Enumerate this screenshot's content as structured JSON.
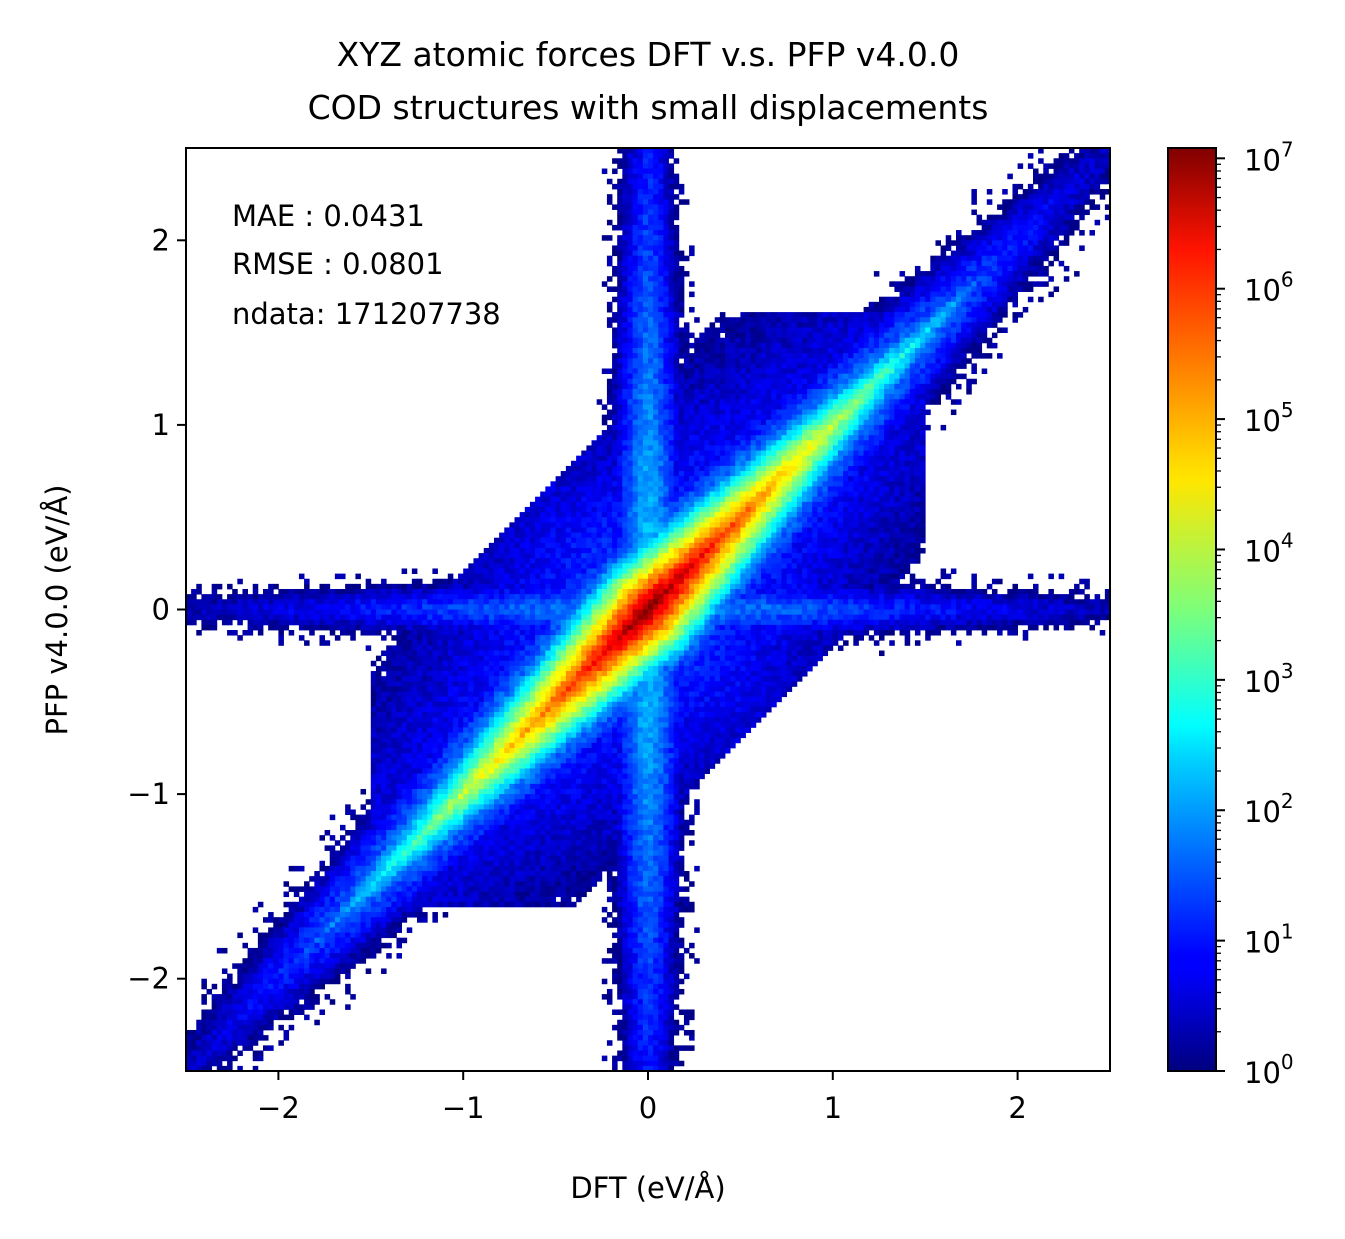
{
  "chart_data": {
    "type": "heatmap",
    "title_line1": "XYZ atomic forces DFT v.s. PFP v4.0.0",
    "title_line2": "COD structures with small displacements",
    "xlabel": "DFT (eV/Å)",
    "ylabel": "PFP v4.0.0 (eV/Å)",
    "xlim": [
      -2.5,
      2.5
    ],
    "ylim": [
      -2.5,
      2.5
    ],
    "xticks": [
      -2,
      -1,
      0,
      1,
      2
    ],
    "yticks": [
      -2,
      -1,
      0,
      1,
      2
    ],
    "xtick_labels": [
      "−2",
      "−1",
      "0",
      "1",
      "2"
    ],
    "ytick_labels": [
      "−2",
      "−1",
      "0",
      "1",
      "2"
    ],
    "colormap": "jet",
    "color_scale": "log",
    "colorbar_range": [
      1,
      12000000
    ],
    "colorbar_ticks": [
      {
        "base": "10",
        "exp": "0",
        "value": 1
      },
      {
        "base": "10",
        "exp": "1",
        "value": 10
      },
      {
        "base": "10",
        "exp": "2",
        "value": 100
      },
      {
        "base": "10",
        "exp": "3",
        "value": 1000
      },
      {
        "base": "10",
        "exp": "4",
        "value": 10000
      },
      {
        "base": "10",
        "exp": "5",
        "value": 100000
      },
      {
        "base": "10",
        "exp": "6",
        "value": 1000000
      },
      {
        "base": "10",
        "exp": "7",
        "value": 10000000
      }
    ],
    "annotations": {
      "mae": "MAE : 0.0431",
      "rmse": "RMSE : 0.0801",
      "ndata": "ndata: 171207738"
    },
    "stats": {
      "mae": 0.0431,
      "rmse": 0.0801,
      "ndata": 171207738
    },
    "density_model": {
      "peak_count": 12000000,
      "diag_core_width": 0.055,
      "diag_tail_width": 0.22,
      "vertical_arm_width": 0.1,
      "horizontal_arm_width": 0.1,
      "arm_extent": 2.5
    }
  }
}
